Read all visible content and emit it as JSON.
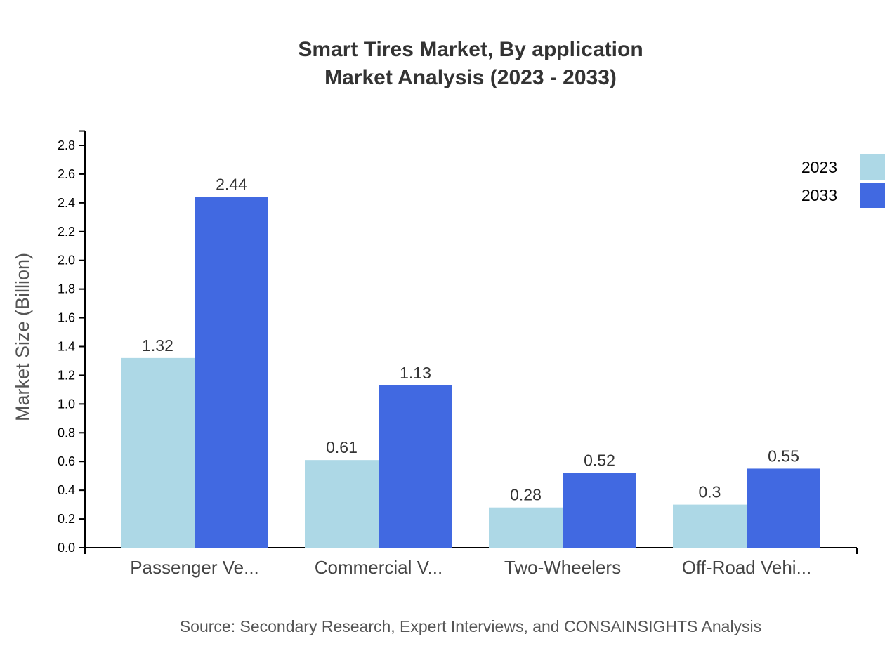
{
  "chart_data": {
    "type": "bar",
    "title": "Smart Tires Market, By application",
    "subtitle": "Market Analysis (2023 - 2033)",
    "xlabel": "",
    "ylabel": "Market Size (Billion)",
    "ylim": [
      0,
      2.9
    ],
    "yticks": [
      "0.0",
      "0.2",
      "0.4",
      "0.6",
      "0.8",
      "1.0",
      "1.2",
      "1.4",
      "1.6",
      "1.8",
      "2.0",
      "2.2",
      "2.4",
      "2.6",
      "2.8"
    ],
    "categories": [
      "Passenger Ve...",
      "Commercial V...",
      "Two-Wheelers",
      "Off-Road Vehi..."
    ],
    "series": [
      {
        "name": "2023",
        "color": "#add8e6",
        "values": [
          1.32,
          0.61,
          0.28,
          0.3
        ]
      },
      {
        "name": "2033",
        "color": "#4169e1",
        "values": [
          2.44,
          1.13,
          0.52,
          0.55
        ]
      }
    ],
    "legend_position": "top-right",
    "grid": false,
    "source": "Source: Secondary Research, Expert Interviews, and CONSAINSIGHTS Analysis"
  }
}
